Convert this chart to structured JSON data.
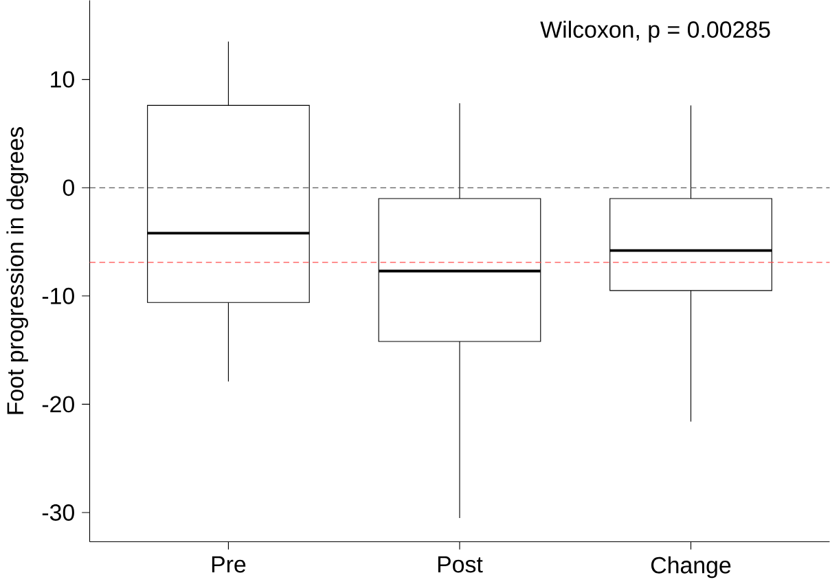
{
  "chart_data": {
    "type": "box",
    "ylabel": "Foot progression in degrees",
    "categories": [
      "Pre",
      "Post",
      "Change"
    ],
    "boxes": [
      {
        "low": -17.9,
        "q1": -10.6,
        "median": -4.2,
        "q3": 7.6,
        "high": 13.5
      },
      {
        "low": -30.5,
        "q1": -14.2,
        "median": -7.7,
        "q3": -1.0,
        "high": 7.8
      },
      {
        "low": -21.6,
        "q1": -9.5,
        "median": -5.8,
        "q3": -1.0,
        "high": 7.6
      }
    ],
    "ylim": [
      -32.7,
      17.3
    ],
    "yticks": [
      -30,
      -20,
      -10,
      0,
      10
    ],
    "ref_lines": [
      {
        "axis": "y",
        "value": 0,
        "color": "#333333",
        "line_style": "dashed"
      },
      {
        "axis": "y",
        "value": -6.9,
        "color": "#ff4d4d",
        "line_style": "dashed"
      }
    ],
    "annotations": [
      "Wilcoxon, p = 0.00285"
    ]
  }
}
